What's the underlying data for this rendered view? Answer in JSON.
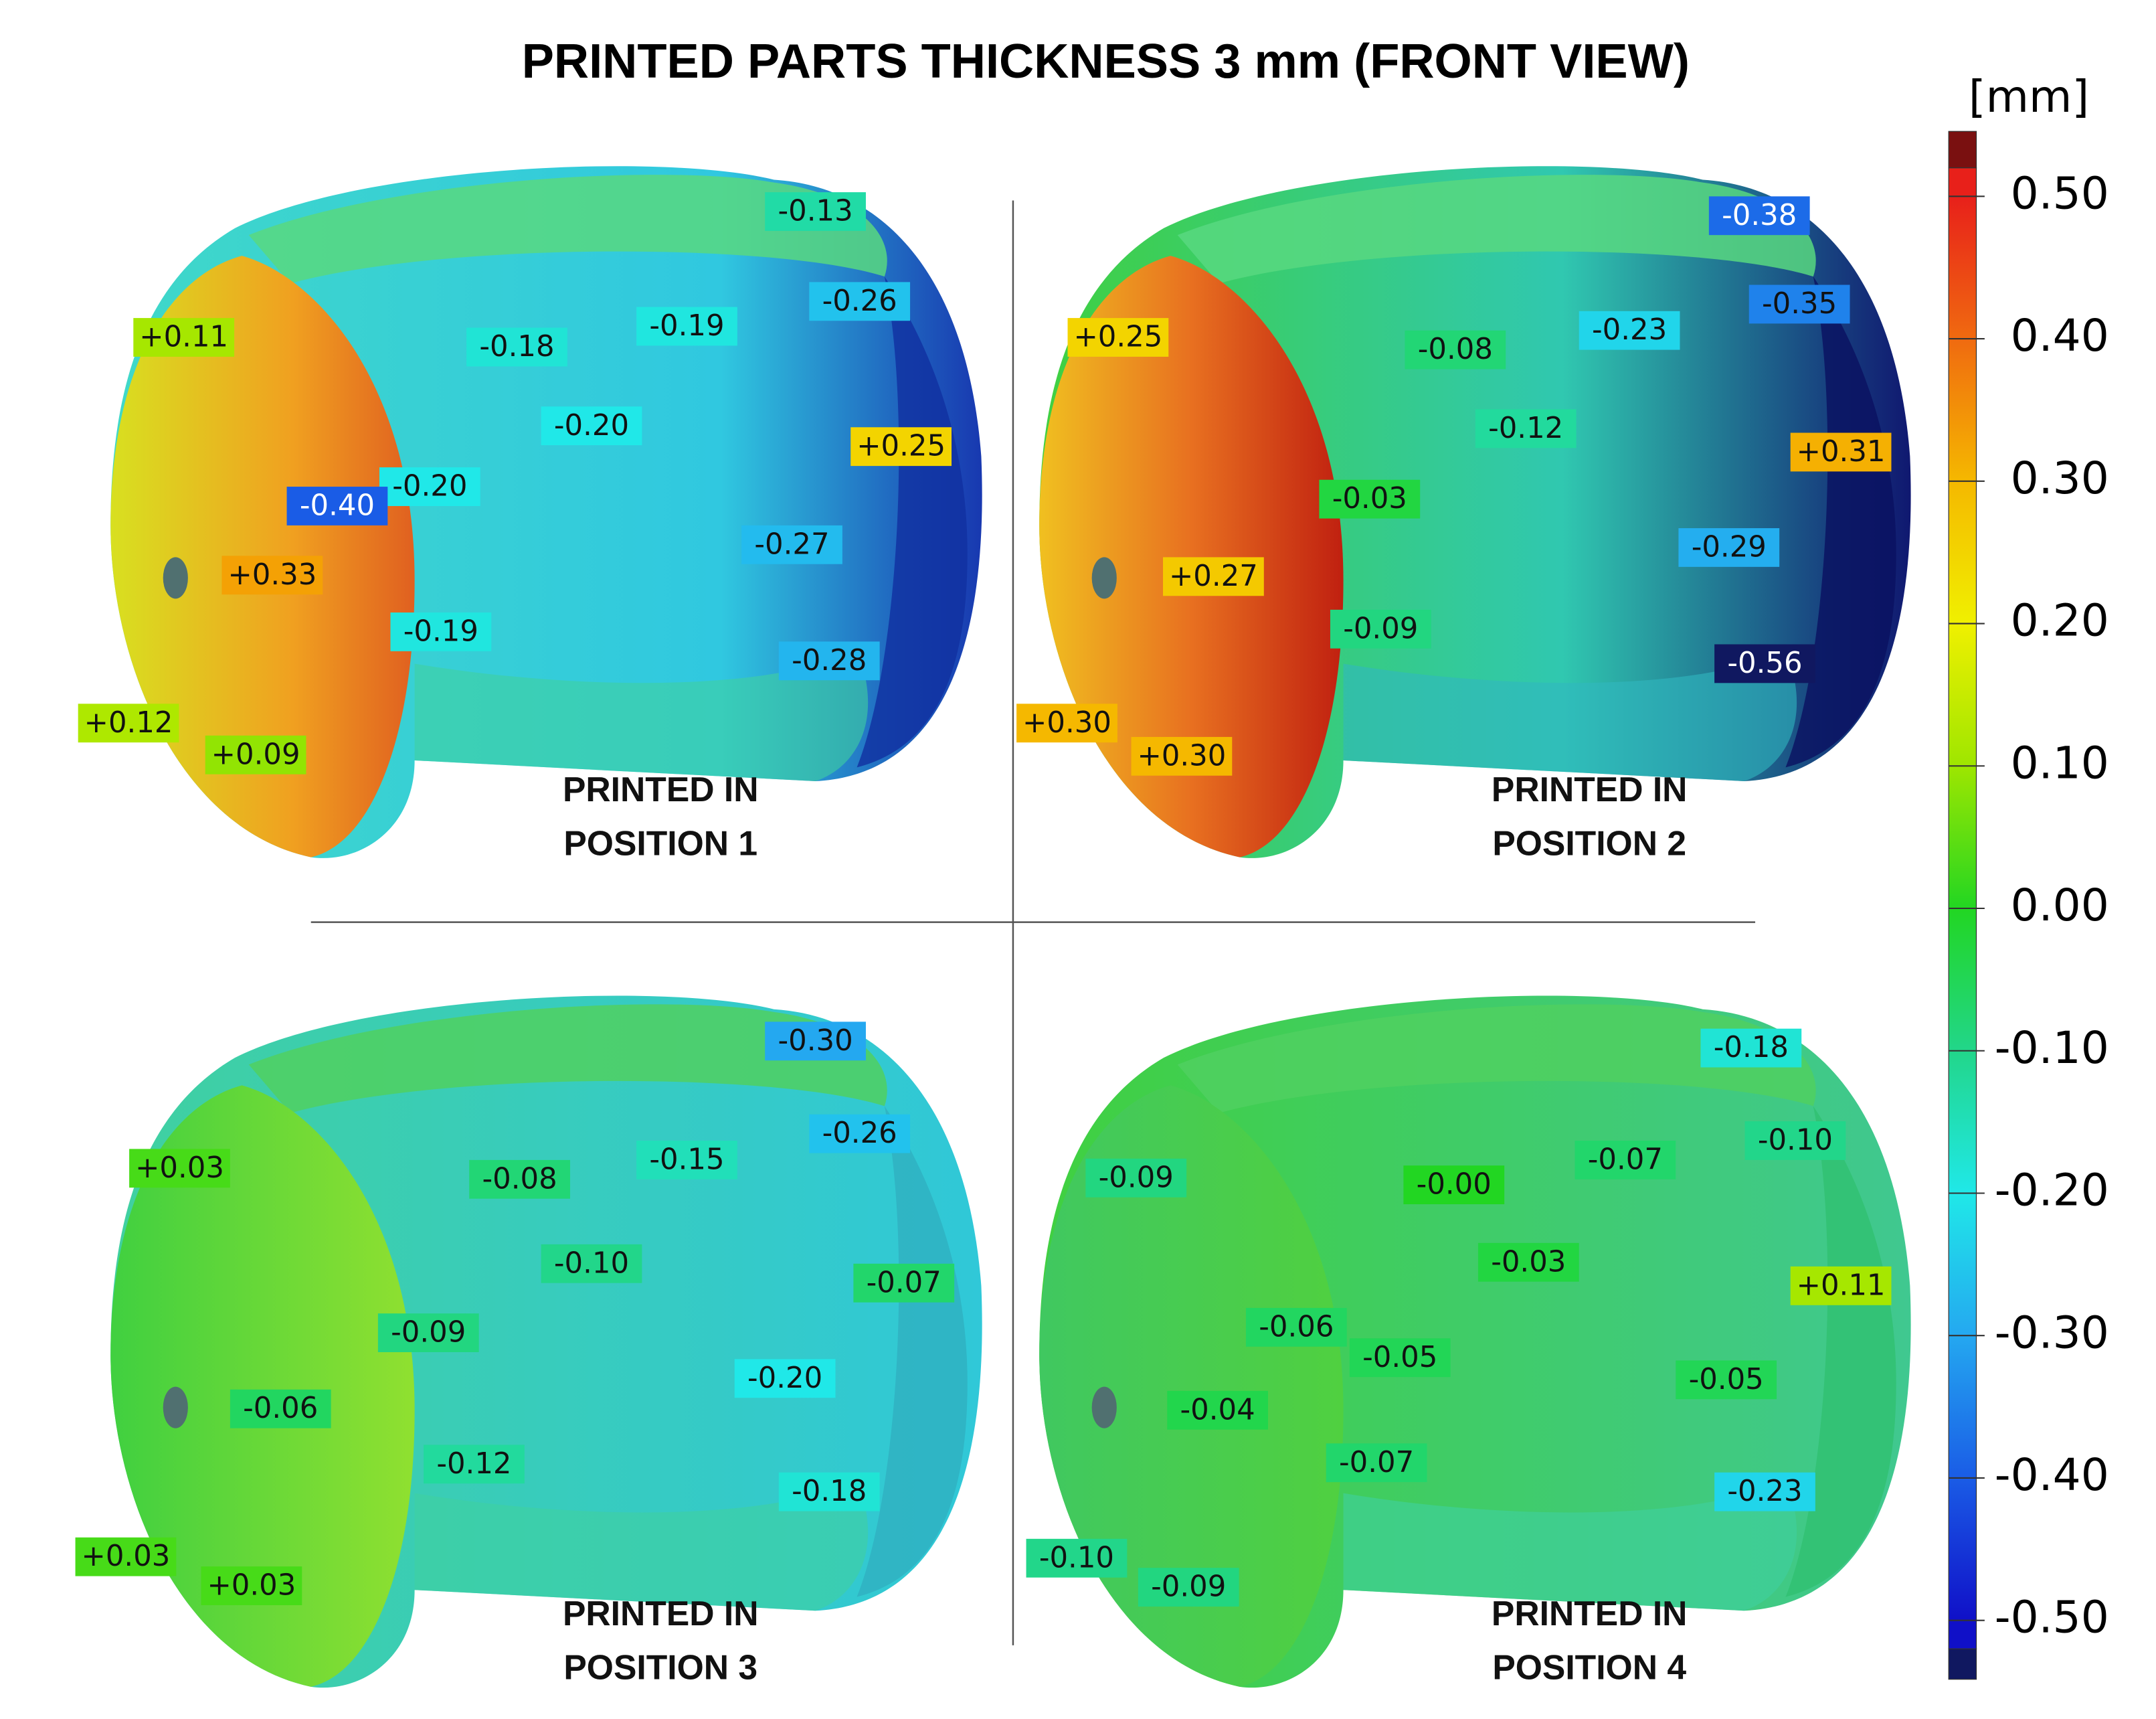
{
  "title": "PRINTED PARTS THICKNESS 3 mm (FRONT VIEW)",
  "colorbar": {
    "unit": "[mm]",
    "range": [
      -0.52,
      0.52
    ],
    "ticks": [
      {
        "value": 0.5,
        "label": "0.50"
      },
      {
        "value": 0.4,
        "label": "0.40"
      },
      {
        "value": 0.3,
        "label": "0.30"
      },
      {
        "value": 0.2,
        "label": "0.20"
      },
      {
        "value": 0.1,
        "label": "0.10"
      },
      {
        "value": 0,
        "label": "0.00"
      },
      {
        "value": -0.1,
        "label": "-0.10"
      },
      {
        "value": -0.2,
        "label": "-0.20"
      },
      {
        "value": -0.3,
        "label": "-0.30"
      },
      {
        "value": -0.4,
        "label": "-0.40"
      },
      {
        "value": -0.5,
        "label": "-0.50"
      }
    ],
    "colors": [
      "#e8201a",
      "#f06a10",
      "#f5b800",
      "#f0f000",
      "#9ee600",
      "#22d622",
      "#22d68a",
      "#20e8e8",
      "#24a8f0",
      "#1a5ce6",
      "#1010c8"
    ],
    "above_color": "#7a1010",
    "below_color": "#101860"
  },
  "panels": [
    {
      "caption": [
        "PRINTED IN",
        "POSITION 1"
      ],
      "annotations": [
        {
          "value": -0.13,
          "label": "-0.13"
        },
        {
          "value": -0.26,
          "label": "-0.26"
        },
        {
          "value": 0.11,
          "label": "+0.11"
        },
        {
          "value": -0.18,
          "label": "-0.18"
        },
        {
          "value": -0.19,
          "label": "-0.19"
        },
        {
          "value": -0.2,
          "label": "-0.20"
        },
        {
          "value": 0.25,
          "label": "+0.25"
        },
        {
          "value": -0.2,
          "label": "-0.20"
        },
        {
          "value": -0.4,
          "label": "-0.40"
        },
        {
          "value": 0.33,
          "label": "+0.33"
        },
        {
          "value": -0.27,
          "label": "-0.27"
        },
        {
          "value": -0.19,
          "label": "-0.19"
        },
        {
          "value": -0.28,
          "label": "-0.28"
        },
        {
          "value": 0.12,
          "label": "+0.12"
        },
        {
          "value": 0.09,
          "label": "+0.09"
        }
      ]
    },
    {
      "caption": [
        "PRINTED IN",
        "POSITION 2"
      ],
      "annotations": [
        {
          "value": -0.38,
          "label": "-0.38"
        },
        {
          "value": -0.35,
          "label": "-0.35"
        },
        {
          "value": 0.25,
          "label": "+0.25"
        },
        {
          "value": -0.08,
          "label": "-0.08"
        },
        {
          "value": -0.23,
          "label": "-0.23"
        },
        {
          "value": -0.12,
          "label": "-0.12"
        },
        {
          "value": 0.31,
          "label": "+0.31"
        },
        {
          "value": -0.03,
          "label": "-0.03"
        },
        {
          "value": 0.27,
          "label": "+0.27"
        },
        {
          "value": -0.29,
          "label": "-0.29"
        },
        {
          "value": -0.09,
          "label": "-0.09"
        },
        {
          "value": -0.56,
          "label": "-0.56"
        },
        {
          "value": 0.3,
          "label": "+0.30"
        },
        {
          "value": 0.3,
          "label": "+0.30"
        }
      ]
    },
    {
      "caption": [
        "PRINTED IN",
        "POSITION 3"
      ],
      "annotations": [
        {
          "value": -0.3,
          "label": "-0.30"
        },
        {
          "value": -0.26,
          "label": "-0.26"
        },
        {
          "value": 0.03,
          "label": "+0.03"
        },
        {
          "value": -0.08,
          "label": "-0.08"
        },
        {
          "value": -0.15,
          "label": "-0.15"
        },
        {
          "value": -0.1,
          "label": "-0.10"
        },
        {
          "value": -0.07,
          "label": "-0.07"
        },
        {
          "value": -0.09,
          "label": "-0.09"
        },
        {
          "value": -0.06,
          "label": "-0.06"
        },
        {
          "value": -0.2,
          "label": "-0.20"
        },
        {
          "value": -0.12,
          "label": "-0.12"
        },
        {
          "value": -0.18,
          "label": "-0.18"
        },
        {
          "value": 0.03,
          "label": "+0.03"
        },
        {
          "value": 0.03,
          "label": "+0.03"
        }
      ]
    },
    {
      "caption": [
        "PRINTED IN",
        "POSITION 4"
      ],
      "annotations": [
        {
          "value": -0.18,
          "label": "-0.18"
        },
        {
          "value": -0.1,
          "label": "-0.10"
        },
        {
          "value": -0.09,
          "label": "-0.09"
        },
        {
          "value": 0,
          "label": "-0.00"
        },
        {
          "value": -0.07,
          "label": "-0.07"
        },
        {
          "value": -0.03,
          "label": "-0.03"
        },
        {
          "value": 0.11,
          "label": "+0.11"
        },
        {
          "value": -0.06,
          "label": "-0.06"
        },
        {
          "value": -0.05,
          "label": "-0.05"
        },
        {
          "value": -0.04,
          "label": "-0.04"
        },
        {
          "value": -0.05,
          "label": "-0.05"
        },
        {
          "value": -0.07,
          "label": "-0.07"
        },
        {
          "value": -0.23,
          "label": "-0.23"
        },
        {
          "value": -0.1,
          "label": "-0.10"
        },
        {
          "value": -0.09,
          "label": "-0.09"
        }
      ]
    }
  ]
}
